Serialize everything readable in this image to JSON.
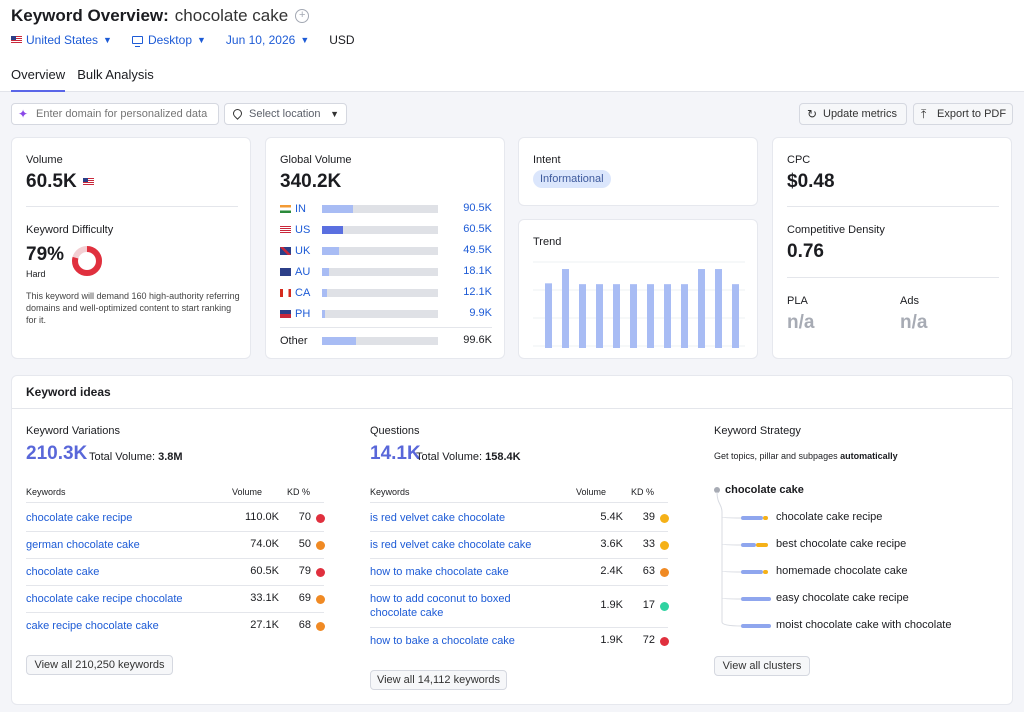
{
  "header": {
    "title": "Keyword Overview:",
    "keyword": "chocolate cake",
    "filters": {
      "country": "United States",
      "device": "Desktop",
      "date": "Jun 10, 2026",
      "currency": "USD"
    },
    "tabs": [
      "Overview",
      "Bulk Analysis"
    ]
  },
  "toolbar": {
    "domain_placeholder": "Enter domain for personalized data",
    "location_label": "Select location",
    "update_label": "Update metrics",
    "export_label": "Export to PDF"
  },
  "volume_card": {
    "volume_label": "Volume",
    "volume_value": "60.5K",
    "kd_label": "Keyword Difficulty",
    "kd_value": "79%",
    "kd_percent": 79,
    "kd_level": "Hard",
    "kd_description": "This keyword will demand 160 high-authority referring domains and well-optimized content to start ranking for it.",
    "kd_color": "#e0303e"
  },
  "global_card": {
    "label": "Global Volume",
    "value": "340.2K",
    "rows": [
      {
        "code": "IN",
        "value": "90.5K",
        "share": 0.27
      },
      {
        "code": "US",
        "value": "60.5K",
        "share": 0.18
      },
      {
        "code": "UK",
        "value": "49.5K",
        "share": 0.15
      },
      {
        "code": "AU",
        "value": "18.1K",
        "share": 0.06
      },
      {
        "code": "CA",
        "value": "12.1K",
        "share": 0.04
      },
      {
        "code": "PH",
        "value": "9.9K",
        "share": 0.03
      }
    ],
    "other_label": "Other",
    "other_value": "99.6K",
    "other_share": 0.29
  },
  "intent_card": {
    "label": "Intent",
    "badge": "Informational"
  },
  "trend_card": {
    "label": "Trend",
    "values": [
      0.77,
      0.94,
      0.76,
      0.76,
      0.76,
      0.76,
      0.76,
      0.76,
      0.76,
      0.94,
      0.94,
      0.76
    ]
  },
  "cpc_card": {
    "cpc_label": "CPC",
    "cpc_value": "$0.48",
    "cd_label": "Competitive Density",
    "cd_value": "0.76",
    "pla_label": "PLA",
    "pla_value": "n/a",
    "ads_label": "Ads",
    "ads_value": "n/a"
  },
  "ideas": {
    "title": "Keyword ideas",
    "variations": {
      "title": "Keyword Variations",
      "count": "210.3K",
      "total_label": "Total Volume:",
      "total_value": "3.8M",
      "th_keywords": "Keywords",
      "th_volume": "Volume",
      "th_kd": "KD %",
      "rows": [
        {
          "kw": "chocolate cake recipe",
          "vol": "110.0K",
          "kd": "70",
          "color": "#e0303e"
        },
        {
          "kw": "german chocolate cake",
          "vol": "74.0K",
          "kd": "50",
          "color": "#f08a24"
        },
        {
          "kw": "chocolate cake",
          "vol": "60.5K",
          "kd": "79",
          "color": "#e0303e"
        },
        {
          "kw": "chocolate cake recipe chocolate",
          "vol": "33.1K",
          "kd": "69",
          "color": "#f08a24"
        },
        {
          "kw": "cake recipe chocolate cake",
          "vol": "27.1K",
          "kd": "68",
          "color": "#f08a24"
        }
      ],
      "view_all": "View all 210,250 keywords"
    },
    "questions": {
      "title": "Questions",
      "count": "14.1K",
      "total_label": "Total Volume:",
      "total_value": "158.4K",
      "th_keywords": "Keywords",
      "th_volume": "Volume",
      "th_kd": "KD %",
      "rows": [
        {
          "kw": "is red velvet cake chocolate",
          "vol": "5.4K",
          "kd": "39",
          "color": "#f5b118"
        },
        {
          "kw": "is red velvet cake chocolate cake",
          "vol": "3.6K",
          "kd": "33",
          "color": "#f5b118"
        },
        {
          "kw": "how to make chocolate cake",
          "vol": "2.4K",
          "kd": "63",
          "color": "#f08a24"
        },
        {
          "kw": "how to add coconut to boxed chocolate cake",
          "vol": "1.9K",
          "kd": "17",
          "color": "#2fd3a1"
        },
        {
          "kw": "how to bake a chocolate cake",
          "vol": "1.9K",
          "kd": "72",
          "color": "#e0303e"
        }
      ],
      "view_all": "View all 14,112 keywords"
    },
    "strategy": {
      "title": "Keyword Strategy",
      "subtitle_prefix": "Get topics, pillar and subpages ",
      "subtitle_bold": "automatically",
      "root": "chocolate cake",
      "items": [
        "chocolate cake recipe",
        "best chocolate cake recipe",
        "homemade chocolate cake",
        "easy chocolate cake recipe",
        "moist chocolate cake with chocolate"
      ],
      "view_all": "View all clusters"
    }
  }
}
